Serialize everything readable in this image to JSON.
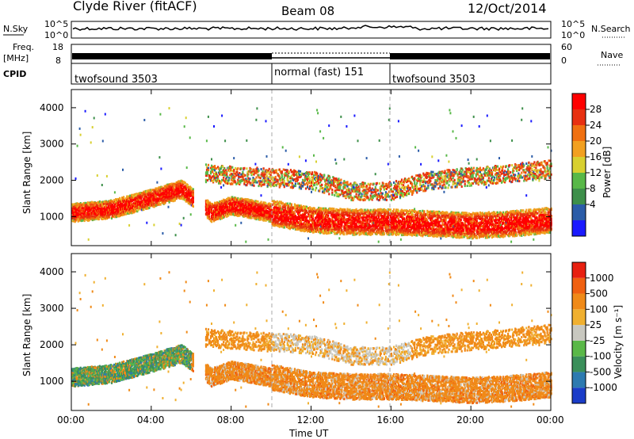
{
  "header": {
    "station": "Clyde River (fitACF)",
    "beam": "Beam 08",
    "date": "12/Oct/2014"
  },
  "noise_panel": {
    "left_label": "N.Sky",
    "right_label": "N.Search",
    "left_ticks": [
      "10^5",
      "10^0"
    ],
    "right_ticks": [
      "10^5",
      "10^0"
    ]
  },
  "freq_panel": {
    "left_label_line1": "Freq.",
    "left_label_line2": "[MHz]",
    "right_label": "Nave",
    "left_ticks": [
      "18",
      "8"
    ],
    "right_ticks": [
      "60",
      "0"
    ]
  },
  "cpid_panel": {
    "label": "CPID",
    "segments": [
      {
        "name": "twofsound 3503",
        "start_hour": 0,
        "end_hour": 10
      },
      {
        "name": "normal (fast) 151",
        "start_hour": 10,
        "end_hour": 16
      },
      {
        "name": "twofsound 3503",
        "start_hour": 16,
        "end_hour": 24
      }
    ]
  },
  "power_panel": {
    "ylabel": "Slant Range [km]",
    "yticks": [
      "4000",
      "3000",
      "2000",
      "1000"
    ],
    "colorbar_label": "Power [dB]",
    "colorbar_ticks": [
      "28",
      "24",
      "20",
      "16",
      "12",
      "8",
      "4"
    ],
    "colors": [
      "#1a1aff",
      "#2b5ca8",
      "#3d8f4a",
      "#58b848",
      "#d8d030",
      "#f2a020",
      "#f07010",
      "#e83010",
      "#ff0000"
    ]
  },
  "velocity_panel": {
    "ylabel": "Slant Range [km]",
    "yticks": [
      "4000",
      "3000",
      "2000",
      "1000"
    ],
    "colorbar_label": "Velocity [m s⁻¹]",
    "colorbar_ticks": [
      "1000",
      "500",
      "100",
      "25",
      "-25",
      "-100",
      "-500",
      "-1000"
    ],
    "colors": [
      "#1a3cc8",
      "#2d7ab0",
      "#3a8f5a",
      "#5ab848",
      "#c8c8c0",
      "#f0b030",
      "#f08a18",
      "#f06010",
      "#e82010"
    ]
  },
  "x_axis": {
    "label": "Time UT",
    "ticks": [
      "00:00",
      "04:00",
      "08:00",
      "12:00",
      "16:00",
      "20:00",
      "00:00"
    ]
  },
  "chart_data": {
    "type": "heatmap",
    "x_unit": "hour UT",
    "x_range": [
      0,
      24
    ],
    "y_range": [
      200,
      4500
    ],
    "power_bands_center": [
      {
        "x": 0,
        "y": 1100
      },
      {
        "x": 2,
        "y": 1200
      },
      {
        "x": 4,
        "y": 1500
      },
      {
        "x": 5.5,
        "y": 1750
      },
      {
        "x": 7,
        "y": 1100
      },
      {
        "x": 8,
        "y": 1300
      },
      {
        "x": 10,
        "y": 1100
      },
      {
        "x": 12,
        "y": 900
      },
      {
        "x": 14,
        "y": 850
      },
      {
        "x": 16,
        "y": 850
      },
      {
        "x": 18,
        "y": 800
      },
      {
        "x": 20,
        "y": 750
      },
      {
        "x": 22,
        "y": 800
      },
      {
        "x": 24,
        "y": 900
      }
    ],
    "upper_band_center": [
      {
        "x": 6.5,
        "y": 2200
      },
      {
        "x": 9,
        "y": 2100
      },
      {
        "x": 12,
        "y": 2000
      },
      {
        "x": 14,
        "y": 1700
      },
      {
        "x": 16,
        "y": 1700
      },
      {
        "x": 18,
        "y": 2000
      },
      {
        "x": 20,
        "y": 2100
      },
      {
        "x": 22,
        "y": 2200
      },
      {
        "x": 24,
        "y": 2300
      }
    ]
  }
}
